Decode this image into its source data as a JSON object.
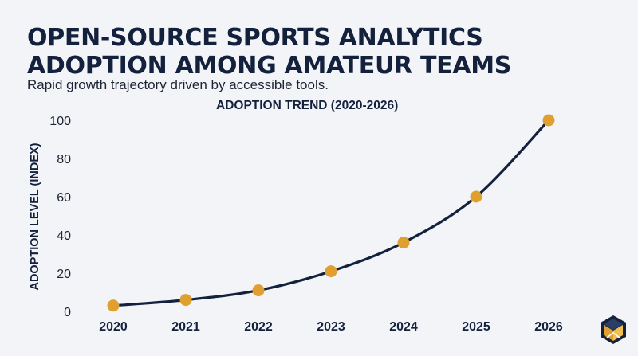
{
  "title_line1": "OPEN-SOURCE SPORTS ANALYTICS",
  "title_line2": "ADOPTION AMONG AMATEUR TEAMS",
  "subtitle": "Rapid growth trajectory driven by accessible tools.",
  "logo_icon": "cube-logo-icon",
  "colors": {
    "background": "#f2f4f8",
    "line": "#14213d",
    "marker": "#e0a030",
    "text": "#14213d"
  },
  "chart_data": {
    "type": "line",
    "title": "ADOPTION TREND (2020-2026)",
    "xlabel": "",
    "ylabel": "ADOPTION LEVEL (INDEX)",
    "categories": [
      "2020",
      "2021",
      "2022",
      "2023",
      "2024",
      "2025",
      "2026"
    ],
    "series": [
      {
        "values": [
          3,
          6,
          11,
          21,
          36,
          60,
          100
        ]
      }
    ],
    "ylim": [
      0,
      100
    ],
    "yticks": [
      0,
      20,
      40,
      60,
      80,
      100
    ],
    "grid": false,
    "smooth": true
  }
}
